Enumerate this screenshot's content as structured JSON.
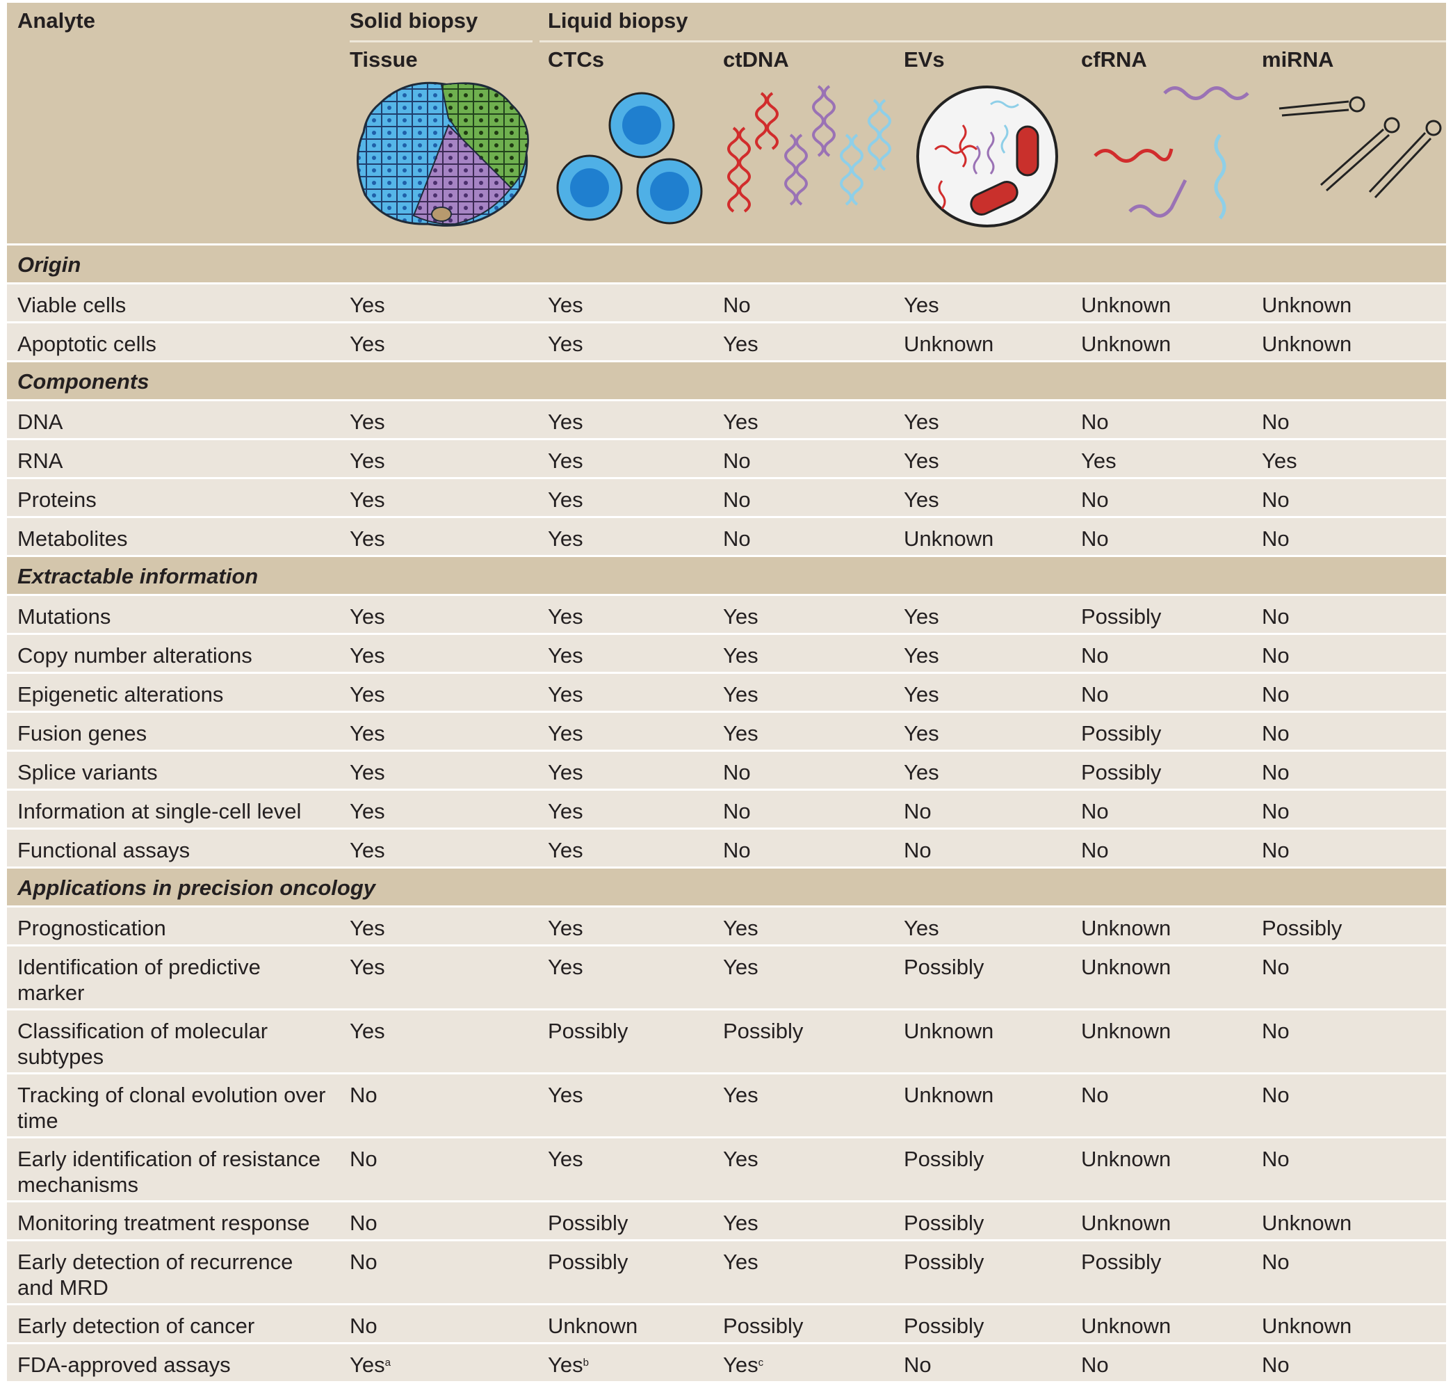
{
  "header": {
    "analyte": "Analyte",
    "solid_biopsy": "Solid biopsy",
    "liquid_biopsy": "Liquid biopsy",
    "columns": [
      "Tissue",
      "CTCs",
      "ctDNA",
      "EVs",
      "cfRNA",
      "miRNA"
    ],
    "icons": [
      "tissue-icon",
      "ctc-cells-icon",
      "ctdna-icon",
      "ev-vesicle-icon",
      "cfrna-icon",
      "mirna-icon"
    ]
  },
  "colors": {
    "header_bg": "#d4c6ac",
    "row_bg": "#ebe5dc",
    "blue": "#3fa9e0",
    "green": "#5ca446",
    "purple": "#9a72b5",
    "red": "#d12c2c",
    "lightblue": "#8ecfe8"
  },
  "sections": [
    {
      "title": "Origin",
      "rows": [
        {
          "label": "Viable cells",
          "values": [
            "Yes",
            "Yes",
            "No",
            "Yes",
            "Unknown",
            "Unknown"
          ]
        },
        {
          "label": "Apoptotic cells",
          "values": [
            "Yes",
            "Yes",
            "Yes",
            "Unknown",
            "Unknown",
            "Unknown"
          ]
        }
      ]
    },
    {
      "title": "Components",
      "rows": [
        {
          "label": "DNA",
          "values": [
            "Yes",
            "Yes",
            "Yes",
            "Yes",
            "No",
            "No"
          ]
        },
        {
          "label": "RNA",
          "values": [
            "Yes",
            "Yes",
            "No",
            "Yes",
            "Yes",
            "Yes"
          ]
        },
        {
          "label": "Proteins",
          "values": [
            "Yes",
            "Yes",
            "No",
            "Yes",
            "No",
            "No"
          ]
        },
        {
          "label": "Metabolites",
          "values": [
            "Yes",
            "Yes",
            "No",
            "Unknown",
            "No",
            "No"
          ]
        }
      ]
    },
    {
      "title": "Extractable information",
      "rows": [
        {
          "label": "Mutations",
          "values": [
            "Yes",
            "Yes",
            "Yes",
            "Yes",
            "Possibly",
            "No"
          ]
        },
        {
          "label": "Copy number alterations",
          "values": [
            "Yes",
            "Yes",
            "Yes",
            "Yes",
            "No",
            "No"
          ]
        },
        {
          "label": "Epigenetic alterations",
          "values": [
            "Yes",
            "Yes",
            "Yes",
            "Yes",
            "No",
            "No"
          ]
        },
        {
          "label": "Fusion genes",
          "values": [
            "Yes",
            "Yes",
            "Yes",
            "Yes",
            "Possibly",
            "No"
          ]
        },
        {
          "label": "Splice variants",
          "values": [
            "Yes",
            "Yes",
            "No",
            "Yes",
            "Possibly",
            "No"
          ]
        },
        {
          "label": "Information at single-cell level",
          "values": [
            "Yes",
            "Yes",
            "No",
            "No",
            "No",
            "No"
          ]
        },
        {
          "label": "Functional assays",
          "values": [
            "Yes",
            "Yes",
            "No",
            "No",
            "No",
            "No"
          ]
        }
      ]
    },
    {
      "title": "Applications in precision oncology",
      "rows": [
        {
          "label": "Prognostication",
          "values": [
            "Yes",
            "Yes",
            "Yes",
            "Yes",
            "Unknown",
            "Possibly"
          ]
        },
        {
          "label": "Identification of predictive marker",
          "label_lines": [
            "Identification of predictive",
            "marker"
          ],
          "values": [
            "Yes",
            "Yes",
            "Yes",
            "Possibly",
            "Unknown",
            "No"
          ]
        },
        {
          "label": "Classification of molecular subtypes",
          "label_lines": [
            "Classification of molecular",
            "subtypes"
          ],
          "values": [
            "Yes",
            "Possibly",
            "Possibly",
            "Unknown",
            "Unknown",
            "No"
          ]
        },
        {
          "label": "Tracking of clonal evolution over time",
          "label_lines": [
            "Tracking of clonal evolution over",
            "time"
          ],
          "values": [
            "No",
            "Yes",
            "Yes",
            "Unknown",
            "No",
            "No"
          ]
        },
        {
          "label": "Early identification of resistance mechanisms",
          "label_lines": [
            "Early identification of resistance",
            "mechanisms"
          ],
          "values": [
            "No",
            "Yes",
            "Yes",
            "Possibly",
            "Unknown",
            "No"
          ]
        },
        {
          "label": "Monitoring treatment response",
          "values": [
            "No",
            "Possibly",
            "Yes",
            "Possibly",
            "Unknown",
            "Unknown"
          ]
        },
        {
          "label": "Early detection of recurrence and MRD",
          "label_lines": [
            "Early detection of recurrence",
            "and MRD"
          ],
          "values": [
            "No",
            "Possibly",
            "Yes",
            "Possibly",
            "Possibly",
            "No"
          ]
        },
        {
          "label": "Early detection of cancer",
          "values": [
            "No",
            "Unknown",
            "Possibly",
            "Possibly",
            "Unknown",
            "Unknown"
          ]
        },
        {
          "label": "FDA-approved assays",
          "values": [
            "Yes",
            "Yes",
            "Yes",
            "No",
            "No",
            "No"
          ],
          "superscripts": [
            "a",
            "b",
            "c",
            "",
            "",
            ""
          ]
        }
      ]
    }
  ]
}
